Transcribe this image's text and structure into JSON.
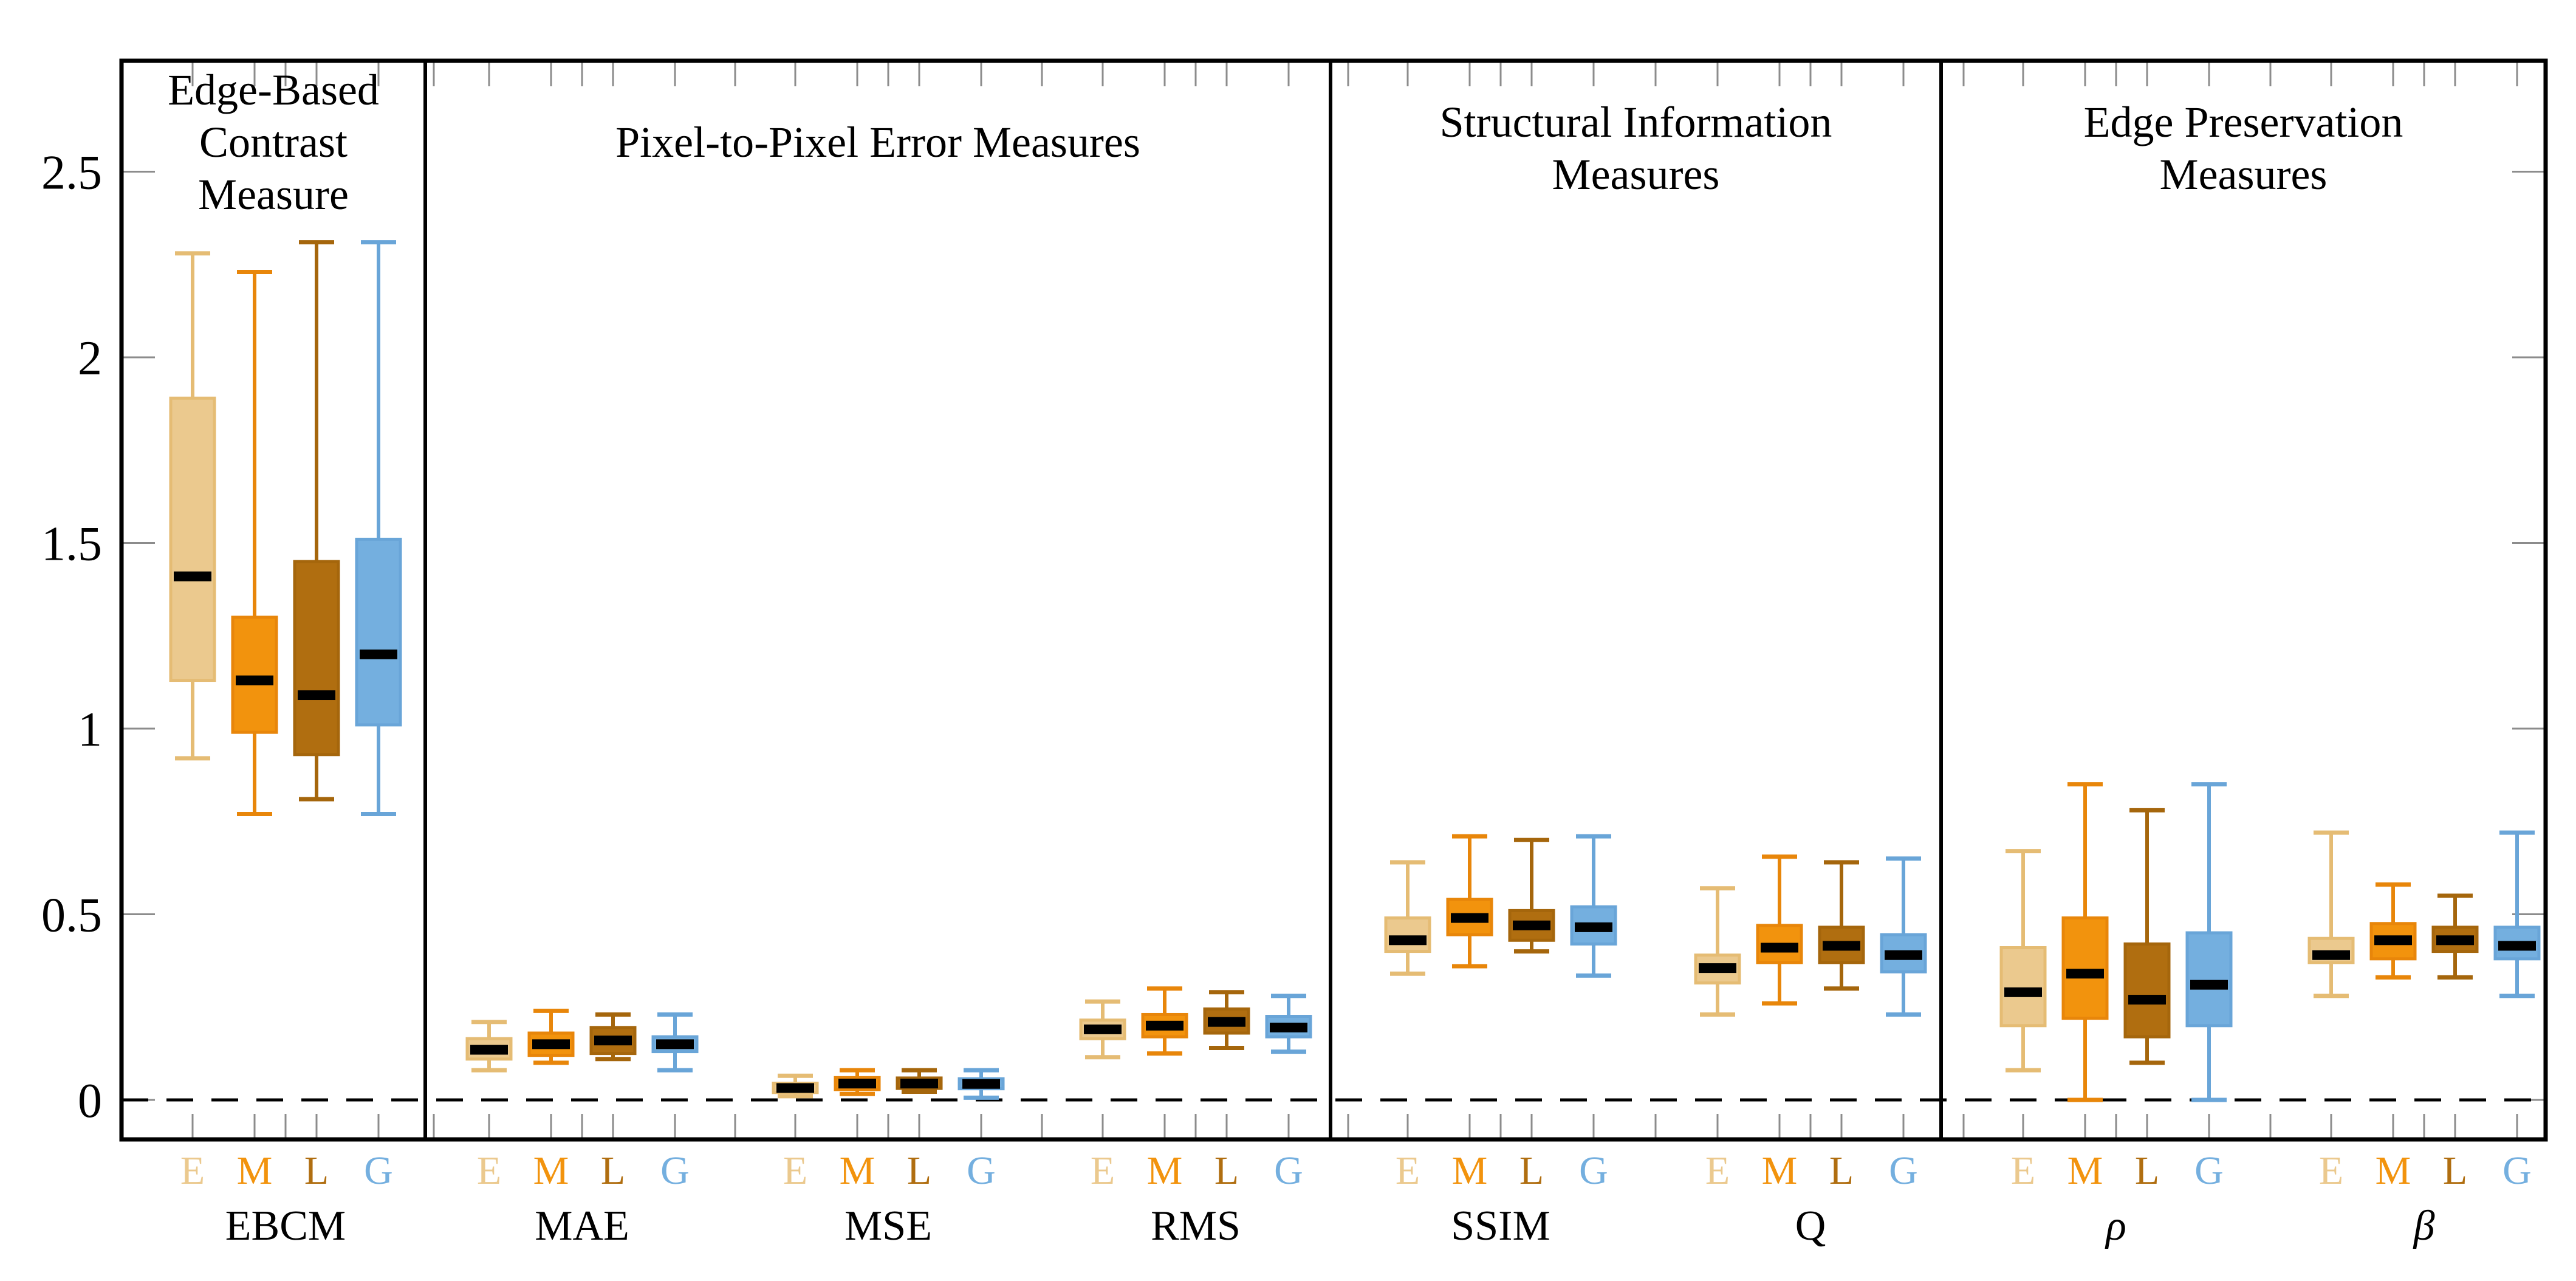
{
  "figure": {
    "background": "#ffffff",
    "frame_color": "#000000",
    "dashed_zero_line_color": "#000000",
    "minor_tick_color": "#8c8c8c",
    "median_color": "#000000",
    "series_labels": [
      "E",
      "M",
      "L",
      "G"
    ],
    "series_colors": {
      "E": {
        "fill": "#EBC98E",
        "stroke": "#E5BC74"
      },
      "M": {
        "fill": "#F2930D",
        "stroke": "#E8860A"
      },
      "L": {
        "fill": "#B06E10",
        "stroke": "#A5660C"
      },
      "G": {
        "fill": "#74AFDF",
        "stroke": "#69A5D8"
      }
    },
    "y_axis": {
      "tick_labels": [
        "0",
        "0.5",
        "1",
        "1.5",
        "2",
        "2.5"
      ],
      "tick_values": [
        0,
        0.5,
        1,
        1.5,
        2,
        2.5
      ],
      "zero_dashed_line": 0
    }
  },
  "chart_data": {
    "type": "boxplot",
    "ylim": [
      -0.106,
      2.804
    ],
    "grid": false,
    "legend_position": "none",
    "series_order": [
      "E",
      "M",
      "L",
      "G"
    ],
    "panels": [
      {
        "title_lines": [
          "Edge-Based",
          "Contrast",
          "Measure"
        ],
        "groups": [
          {
            "name": "EBCM",
            "italic": false,
            "boxes": [
              {
                "label": "E",
                "whisker_low": 0.92,
                "q1": 1.13,
                "median": 1.41,
                "q3": 1.89,
                "whisker_high": 2.28
              },
              {
                "label": "M",
                "whisker_low": 0.77,
                "q1": 0.99,
                "median": 1.13,
                "q3": 1.3,
                "whisker_high": 2.23
              },
              {
                "label": "L",
                "whisker_low": 0.81,
                "q1": 0.93,
                "median": 1.09,
                "q3": 1.45,
                "whisker_high": 2.31
              },
              {
                "label": "G",
                "whisker_low": 0.77,
                "q1": 1.01,
                "median": 1.2,
                "q3": 1.51,
                "whisker_high": 2.31
              }
            ]
          }
        ]
      },
      {
        "title_lines": [
          "Pixel-to-Pixel Error Measures"
        ],
        "groups": [
          {
            "name": "MAE",
            "italic": false,
            "boxes": [
              {
                "label": "E",
                "whisker_low": 0.08,
                "q1": 0.11,
                "median": 0.135,
                "q3": 0.165,
                "whisker_high": 0.21
              },
              {
                "label": "M",
                "whisker_low": 0.1,
                "q1": 0.12,
                "median": 0.15,
                "q3": 0.18,
                "whisker_high": 0.24
              },
              {
                "label": "L",
                "whisker_low": 0.11,
                "q1": 0.125,
                "median": 0.16,
                "q3": 0.195,
                "whisker_high": 0.23
              },
              {
                "label": "G",
                "whisker_low": 0.08,
                "q1": 0.13,
                "median": 0.15,
                "q3": 0.17,
                "whisker_high": 0.23
              }
            ]
          },
          {
            "name": "MSE",
            "italic": false,
            "boxes": [
              {
                "label": "E",
                "whisker_low": 0.01,
                "q1": 0.02,
                "median": 0.032,
                "q3": 0.045,
                "whisker_high": 0.065
              },
              {
                "label": "M",
                "whisker_low": 0.016,
                "q1": 0.028,
                "median": 0.044,
                "q3": 0.06,
                "whisker_high": 0.08
              },
              {
                "label": "L",
                "whisker_low": 0.022,
                "q1": 0.031,
                "median": 0.044,
                "q3": 0.059,
                "whisker_high": 0.08
              },
              {
                "label": "G",
                "whisker_low": 0.006,
                "q1": 0.03,
                "median": 0.043,
                "q3": 0.057,
                "whisker_high": 0.08
              }
            ]
          },
          {
            "name": "RMS",
            "italic": false,
            "boxes": [
              {
                "label": "E",
                "whisker_low": 0.115,
                "q1": 0.165,
                "median": 0.19,
                "q3": 0.215,
                "whisker_high": 0.265
              },
              {
                "label": "M",
                "whisker_low": 0.125,
                "q1": 0.17,
                "median": 0.2,
                "q3": 0.23,
                "whisker_high": 0.3
              },
              {
                "label": "L",
                "whisker_low": 0.14,
                "q1": 0.18,
                "median": 0.21,
                "q3": 0.245,
                "whisker_high": 0.29
              },
              {
                "label": "G",
                "whisker_low": 0.13,
                "q1": 0.17,
                "median": 0.195,
                "q3": 0.225,
                "whisker_high": 0.28
              }
            ]
          }
        ]
      },
      {
        "title_lines": [
          "Structural Information",
          "Measures"
        ],
        "groups": [
          {
            "name": "SSIM",
            "italic": false,
            "boxes": [
              {
                "label": "E",
                "whisker_low": 0.34,
                "q1": 0.4,
                "median": 0.43,
                "q3": 0.49,
                "whisker_high": 0.64
              },
              {
                "label": "M",
                "whisker_low": 0.36,
                "q1": 0.445,
                "median": 0.49,
                "q3": 0.54,
                "whisker_high": 0.71
              },
              {
                "label": "L",
                "whisker_low": 0.4,
                "q1": 0.43,
                "median": 0.47,
                "q3": 0.51,
                "whisker_high": 0.7
              },
              {
                "label": "G",
                "whisker_low": 0.335,
                "q1": 0.42,
                "median": 0.465,
                "q3": 0.52,
                "whisker_high": 0.71
              }
            ]
          },
          {
            "name": "Q",
            "italic": false,
            "boxes": [
              {
                "label": "E",
                "whisker_low": 0.23,
                "q1": 0.315,
                "median": 0.355,
                "q3": 0.39,
                "whisker_high": 0.57
              },
              {
                "label": "M",
                "whisker_low": 0.26,
                "q1": 0.37,
                "median": 0.41,
                "q3": 0.47,
                "whisker_high": 0.655
              },
              {
                "label": "L",
                "whisker_low": 0.3,
                "q1": 0.37,
                "median": 0.415,
                "q3": 0.465,
                "whisker_high": 0.64
              },
              {
                "label": "G",
                "whisker_low": 0.23,
                "q1": 0.345,
                "median": 0.39,
                "q3": 0.445,
                "whisker_high": 0.65
              }
            ]
          }
        ]
      },
      {
        "title_lines": [
          "Edge Preservation",
          "Measures"
        ],
        "groups": [
          {
            "name": "ρ",
            "italic": true,
            "boxes": [
              {
                "label": "E",
                "whisker_low": 0.08,
                "q1": 0.2,
                "median": 0.29,
                "q3": 0.41,
                "whisker_high": 0.67
              },
              {
                "label": "M",
                "whisker_low": 0.0,
                "q1": 0.22,
                "median": 0.34,
                "q3": 0.49,
                "whisker_high": 0.85
              },
              {
                "label": "L",
                "whisker_low": 0.1,
                "q1": 0.17,
                "median": 0.27,
                "q3": 0.42,
                "whisker_high": 0.78
              },
              {
                "label": "G",
                "whisker_low": 0.0,
                "q1": 0.2,
                "median": 0.31,
                "q3": 0.45,
                "whisker_high": 0.85
              }
            ]
          },
          {
            "name": "β",
            "italic": true,
            "boxes": [
              {
                "label": "E",
                "whisker_low": 0.28,
                "q1": 0.37,
                "median": 0.39,
                "q3": 0.435,
                "whisker_high": 0.72
              },
              {
                "label": "M",
                "whisker_low": 0.33,
                "q1": 0.38,
                "median": 0.43,
                "q3": 0.475,
                "whisker_high": 0.58
              },
              {
                "label": "L",
                "whisker_low": 0.33,
                "q1": 0.4,
                "median": 0.43,
                "q3": 0.465,
                "whisker_high": 0.55
              },
              {
                "label": "G",
                "whisker_low": 0.28,
                "q1": 0.38,
                "median": 0.415,
                "q3": 0.465,
                "whisker_high": 0.72
              }
            ]
          }
        ]
      }
    ]
  }
}
